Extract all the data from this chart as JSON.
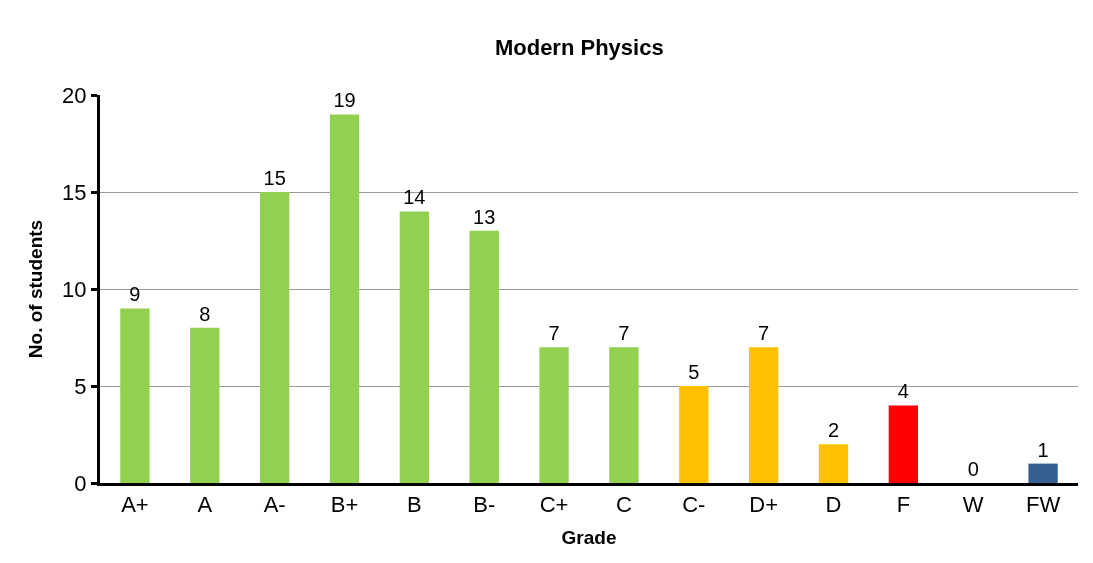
{
  "chart_data": {
    "type": "bar",
    "title": "Modern Physics",
    "xlabel": "Grade",
    "ylabel": "No. of students",
    "categories": [
      "A+",
      "A",
      "A-",
      "B+",
      "B",
      "B-",
      "C+",
      "C",
      "C-",
      "D+",
      "D",
      "F",
      "W",
      "FW"
    ],
    "values": [
      9,
      8,
      15,
      19,
      14,
      13,
      7,
      7,
      5,
      7,
      2,
      4,
      0,
      1
    ],
    "colors": [
      "#92d050",
      "#92d050",
      "#92d050",
      "#92d050",
      "#92d050",
      "#92d050",
      "#92d050",
      "#92d050",
      "#ffc000",
      "#ffc000",
      "#ffc000",
      "#ff0000",
      "#376092",
      "#376092"
    ],
    "ylim": [
      0,
      20
    ],
    "yticks": [
      0,
      5,
      10,
      15,
      20
    ],
    "grid": "y",
    "data_labels": true
  }
}
